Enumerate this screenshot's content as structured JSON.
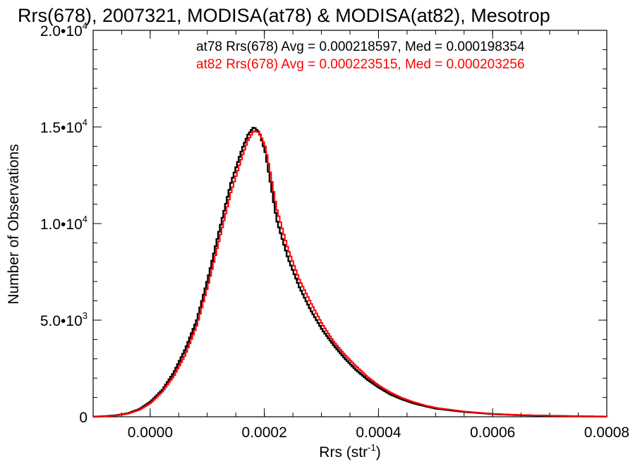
{
  "chart_data": {
    "type": "line",
    "title": "Rrs(678), 2007321, MODISA(at78) & MODISA(at82), Mesotrop",
    "xlabel": "Rrs (str",
    "xlabel_sup": "-1",
    "xlabel_close": ")",
    "ylabel": "Number of Observations",
    "xlim": [
      -0.0001,
      0.0008
    ],
    "ylim": [
      0,
      20000
    ],
    "xticks": [
      0.0,
      0.0002,
      0.0004,
      0.0006,
      0.0008
    ],
    "xtick_labels": [
      "0.0000",
      "0.0002",
      "0.0004",
      "0.0006",
      "0.0008"
    ],
    "yticks": [
      0,
      5000,
      10000,
      15000,
      20000
    ],
    "ytick_labels": [
      {
        "base": "0",
        "exp": ""
      },
      {
        "base": "5.0•10",
        "exp": "3"
      },
      {
        "base": "1.0•10",
        "exp": "4"
      },
      {
        "base": "1.5•10",
        "exp": "4"
      },
      {
        "base": "2.0•10",
        "exp": "4"
      }
    ],
    "grid": false,
    "legend_position": "top-right",
    "series": [
      {
        "name": "at78 Rrs(678) Avg = 0.000218597, Med = 0.000198354",
        "color": "#000000",
        "x": [
          -0.0001,
          -8e-05,
          -6e-05,
          -4e-05,
          -2e-05,
          0.0,
          2e-05,
          4e-05,
          6e-05,
          8e-05,
          0.0001,
          0.00012,
          0.00014,
          0.00016,
          0.00017,
          0.00018,
          0.00019,
          0.0002,
          0.00021,
          0.00022,
          0.00024,
          0.00026,
          0.00028,
          0.0003,
          0.00032,
          0.00034,
          0.00036,
          0.00038,
          0.0004,
          0.00042,
          0.00044,
          0.00046,
          0.00048,
          0.0005,
          0.00055,
          0.0006,
          0.00065,
          0.0007,
          0.00075,
          0.0008
        ],
        "y": [
          0,
          30,
          80,
          180,
          400,
          800,
          1400,
          2300,
          3500,
          5000,
          7200,
          9700,
          12100,
          13900,
          14600,
          15000,
          14700,
          13700,
          12000,
          10200,
          8200,
          6700,
          5500,
          4500,
          3700,
          3000,
          2400,
          1900,
          1500,
          1150,
          900,
          700,
          550,
          420,
          250,
          140,
          80,
          50,
          25,
          10
        ]
      },
      {
        "name": "at82 Rrs(678) Avg = 0.000223515, Med = 0.000203256",
        "color": "#ff0000",
        "x": [
          -0.0001,
          -8e-05,
          -6e-05,
          -4e-05,
          -2e-05,
          0.0,
          2e-05,
          4e-05,
          6e-05,
          8e-05,
          0.0001,
          0.00012,
          0.00014,
          0.00016,
          0.00017,
          0.00018,
          0.00019,
          0.0002,
          0.00021,
          0.00022,
          0.00024,
          0.00026,
          0.00028,
          0.0003,
          0.00032,
          0.00034,
          0.00036,
          0.00038,
          0.0004,
          0.00042,
          0.00044,
          0.00046,
          0.00048,
          0.0005,
          0.00055,
          0.0006,
          0.00065,
          0.0007,
          0.00075,
          0.0008
        ],
        "y": [
          0,
          25,
          70,
          160,
          360,
          720,
          1300,
          2100,
          3200,
          4700,
          6800,
          9200,
          11600,
          13500,
          14300,
          14800,
          14700,
          14000,
          12500,
          10800,
          8700,
          7100,
          5900,
          4800,
          3900,
          3200,
          2600,
          2050,
          1600,
          1250,
          970,
          760,
          590,
          460,
          270,
          150,
          90,
          55,
          28,
          12
        ]
      }
    ]
  }
}
